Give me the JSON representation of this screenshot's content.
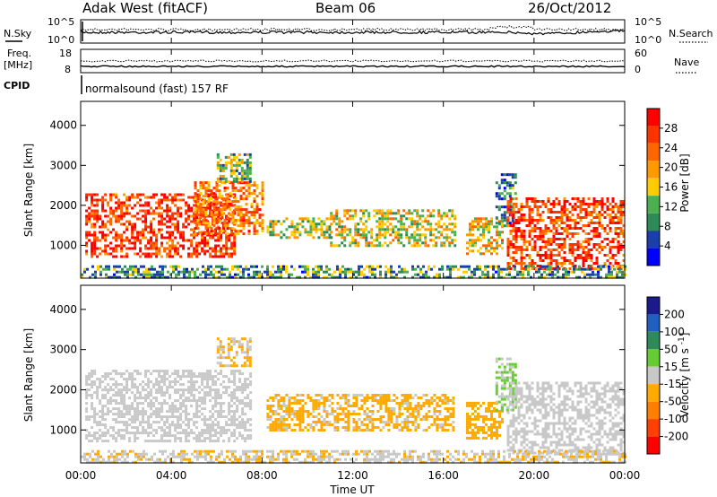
{
  "header": {
    "station": "Adak West (fitACF)",
    "beam": "Beam 06",
    "date": "26/Oct/2012"
  },
  "top_panels": {
    "nsky_label": "N.Sky",
    "nsky_ticks": [
      "10^5",
      "10^0"
    ],
    "nsearch_label": "N.Search",
    "nsearch_ticks": [
      "10^5",
      "10^0"
    ],
    "freq_label": "Freq.",
    "freq_unit": "[MHz]",
    "freq_ticks": [
      "18",
      "8"
    ],
    "nave_label": "Nave",
    "nave_ticks": [
      "60",
      "0"
    ],
    "cpid_label": "CPID",
    "cpid_value": "normalsound (fast) 157 RF"
  },
  "x_axis": {
    "label": "Time UT",
    "ticks": [
      "00:00",
      "04:00",
      "08:00",
      "12:00",
      "16:00",
      "20:00",
      "00:00"
    ]
  },
  "colors": {
    "power": [
      "#0000ff",
      "#1a3fa8",
      "#2e8b57",
      "#4caf50",
      "#ffcc00",
      "#ff9900",
      "#ff6600",
      "#ff3300",
      "#ff0000"
    ],
    "velocity": [
      "#1a1a8c",
      "#1f5fbf",
      "#2e8b57",
      "#66cc33",
      "#c8c8c8",
      "#ffaa00",
      "#ff8000",
      "#ff4000",
      "#ff0000"
    ]
  },
  "chart_data": [
    {
      "type": "heatmap",
      "title": "",
      "xlabel": "",
      "ylabel": "Slant Range [km]",
      "ylim": [
        180,
        4600
      ],
      "y_ticks": [
        "1000",
        "2000",
        "3000",
        "4000"
      ],
      "colorbar": {
        "label": "Power [dB]",
        "ticks": [
          "4",
          "8",
          "12",
          "16",
          "20",
          "24",
          "28"
        ],
        "range": [
          0,
          32
        ]
      },
      "regions": [
        {
          "t": [
            0.2,
            6.8
          ],
          "r": [
            700,
            2300
          ],
          "value": 27
        },
        {
          "t": [
            5.0,
            8.0
          ],
          "r": [
            1300,
            2600
          ],
          "value": 22
        },
        {
          "t": [
            6.0,
            7.5
          ],
          "r": [
            2600,
            3300
          ],
          "value": 12
        },
        {
          "t": [
            8.2,
            11.0
          ],
          "r": [
            1200,
            1700
          ],
          "value": 14
        },
        {
          "t": [
            11.0,
            16.5
          ],
          "r": [
            1000,
            1900
          ],
          "value": 16
        },
        {
          "t": [
            17.0,
            18.6
          ],
          "r": [
            800,
            1700
          ],
          "value": 18
        },
        {
          "t": [
            18.3,
            19.2
          ],
          "r": [
            1500,
            2800
          ],
          "value": 8
        },
        {
          "t": [
            18.8,
            24.0
          ],
          "r": [
            400,
            2200
          ],
          "value": 26
        },
        {
          "t": [
            0.0,
            24.0
          ],
          "r": [
            200,
            500
          ],
          "value": 10
        }
      ]
    },
    {
      "type": "heatmap",
      "title": "",
      "xlabel": "Time UT",
      "ylabel": "Slant Range [km]",
      "ylim": [
        180,
        4600
      ],
      "y_ticks": [
        "1000",
        "2000",
        "3000",
        "4000"
      ],
      "colorbar": {
        "label": "Velocity [m s^-1]",
        "ticks": [
          "200",
          "100",
          "50",
          "15",
          "-15",
          "-50",
          "-100",
          "-200"
        ],
        "range": [
          -250,
          250
        ]
      },
      "regions": [
        {
          "t": [
            0.2,
            7.5
          ],
          "r": [
            700,
            2500
          ],
          "value": 0
        },
        {
          "t": [
            6.0,
            7.5
          ],
          "r": [
            2600,
            3300
          ],
          "value": -30
        },
        {
          "t": [
            8.2,
            16.5
          ],
          "r": [
            1000,
            1900
          ],
          "value": -40
        },
        {
          "t": [
            17.0,
            18.6
          ],
          "r": [
            800,
            1700
          ],
          "value": -60
        },
        {
          "t": [
            18.3,
            19.2
          ],
          "r": [
            1500,
            2800
          ],
          "value": 30
        },
        {
          "t": [
            18.8,
            24.0
          ],
          "r": [
            400,
            2200
          ],
          "value": 0
        },
        {
          "t": [
            0.0,
            24.0
          ],
          "r": [
            200,
            500
          ],
          "value": -20
        }
      ]
    }
  ]
}
